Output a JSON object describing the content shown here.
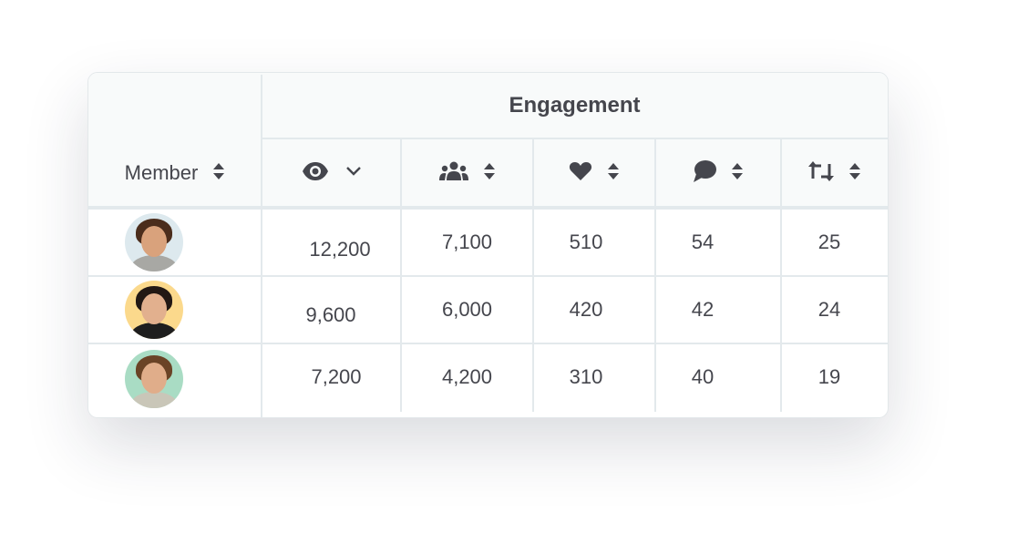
{
  "table": {
    "group_header": "Engagement",
    "columns": [
      {
        "label": "Member",
        "icon": "sort-icon"
      },
      {
        "icon": "eye-icon",
        "sort": "chevron-down-icon"
      },
      {
        "icon": "users-icon",
        "sort": "sort-icon"
      },
      {
        "icon": "heart-icon",
        "sort": "sort-icon"
      },
      {
        "icon": "comment-icon",
        "sort": "sort-icon"
      },
      {
        "icon": "retweet-icon",
        "sort": "sort-icon"
      }
    ],
    "rows": [
      {
        "avatar_bg": "#dde9ee",
        "values": [
          "12,200",
          "7,100",
          "510",
          "54",
          "25"
        ]
      },
      {
        "avatar_bg": "#fbd98c",
        "values": [
          "9,600",
          "6,000",
          "420",
          "42",
          "24"
        ]
      },
      {
        "avatar_bg": "#a9dcc4",
        "values": [
          "7,200",
          "4,200",
          "310",
          "40",
          "19"
        ]
      }
    ]
  },
  "colors": {
    "text": "#45464d",
    "header_bg": "#f8fafa",
    "border": "#e3e9ec"
  }
}
